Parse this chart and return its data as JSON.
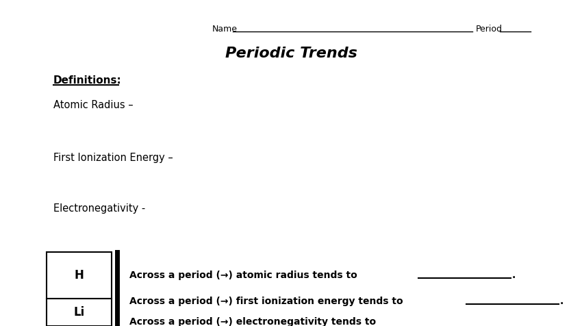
{
  "title": "Periodic Trends",
  "name_label": "Name",
  "period_label": "Period",
  "definitions_label": "Definitions:",
  "atomic_radius_label": "Atomic Radius –",
  "first_ionization_label": "First Ionization Energy –",
  "electronegativity_label": "Electronegativity -",
  "element1": "H",
  "element2": "Li",
  "across_period_text1": "Across a period (→) atomic radius tends to",
  "across_period_text2": "Across a period (→) first ionization energy tends to",
  "across_period_text3": "Across a period (→) electronegativity tends to",
  "background_color": "#ffffff",
  "text_color": "#000000",
  "box_color": "#000000",
  "line_color": "#000000"
}
